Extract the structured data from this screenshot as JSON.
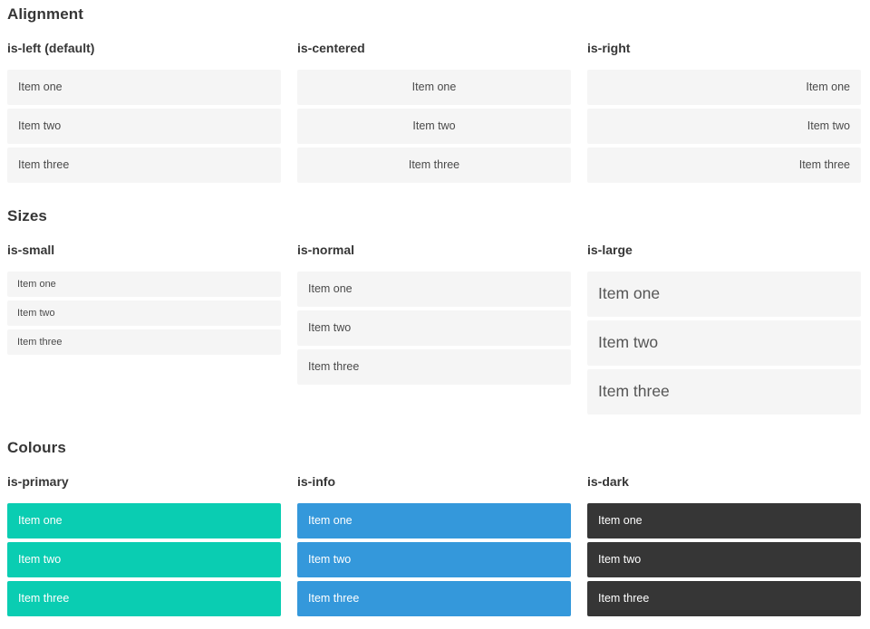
{
  "sections": [
    {
      "title": "Alignment",
      "columns": [
        {
          "heading": "is-left (default)",
          "items": [
            "Item one",
            "Item two",
            "Item three"
          ]
        },
        {
          "heading": "is-centered",
          "items": [
            "Item one",
            "Item two",
            "Item three"
          ]
        },
        {
          "heading": "is-right",
          "items": [
            "Item one",
            "Item two",
            "Item three"
          ]
        }
      ]
    },
    {
      "title": "Sizes",
      "columns": [
        {
          "heading": "is-small",
          "items": [
            "Item one",
            "Item two",
            "Item three"
          ]
        },
        {
          "heading": "is-normal",
          "items": [
            "Item one",
            "Item two",
            "Item three"
          ]
        },
        {
          "heading": "is-large",
          "items": [
            "Item one",
            "Item two",
            "Item three"
          ]
        }
      ]
    },
    {
      "title": "Colours",
      "columns": [
        {
          "heading": "is-primary",
          "items": [
            "Item one",
            "Item two",
            "Item three"
          ]
        },
        {
          "heading": "is-info",
          "items": [
            "Item one",
            "Item two",
            "Item three"
          ]
        },
        {
          "heading": "is-dark",
          "items": [
            "Item one",
            "Item two",
            "Item three"
          ]
        }
      ]
    }
  ],
  "colors": {
    "primary": "#0acdb2",
    "info": "#3498db",
    "dark": "#363636",
    "item_background": "#f5f5f5",
    "item_text": "#4a4a4a",
    "heading_text": "#363636",
    "colored_item_text": "#ffffff"
  }
}
